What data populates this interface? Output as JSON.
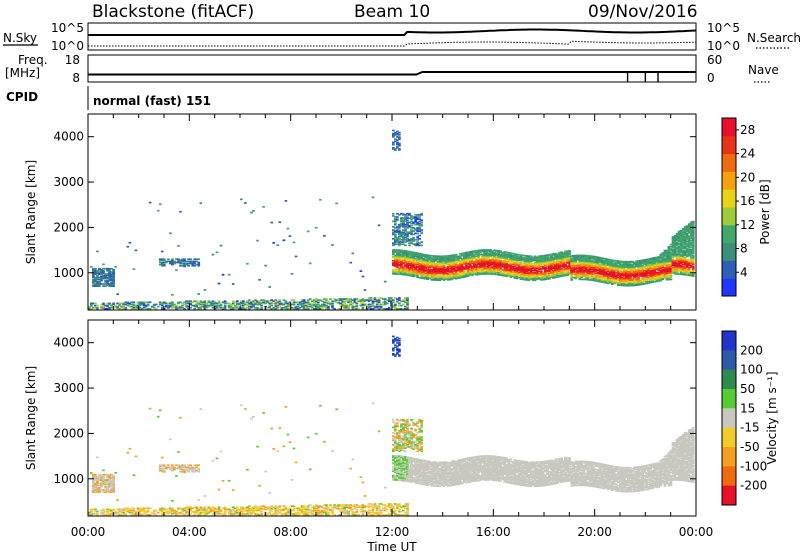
{
  "header": {
    "station": "Blackstone (fitACF)",
    "beam": "Beam 10",
    "date": "09/Nov/2016"
  },
  "summary": {
    "nsky_label": "N.Sky",
    "nsearch_label": "N.Search",
    "freq_label_1": "Freq.",
    "freq_label_2": "[MHz]",
    "nave_label": "Nave",
    "cpid_label": "CPID",
    "cpid_value": "normal (fast) 151",
    "noise_left_ticks": [
      "10^5",
      "10^0"
    ],
    "noise_right_ticks": [
      "10^5",
      "10^0"
    ],
    "freq_ticks": [
      "18",
      "8"
    ],
    "nave_ticks": [
      "60",
      "0"
    ]
  },
  "chart_data": [
    {
      "type": "heatmap",
      "name": "power",
      "xlabel": "Time UT",
      "ylabel": "Slant Range [km]",
      "x_ticks": [
        "00:00",
        "04:00",
        "08:00",
        "12:00",
        "16:00",
        "20:00",
        "00:00"
      ],
      "xlim_hours": [
        0,
        24
      ],
      "y_ticks": [
        1000,
        2000,
        3000,
        4000
      ],
      "ylim": [
        180,
        4500
      ],
      "colorbar": {
        "label": "Power [dB]",
        "ticks": [
          4,
          8,
          12,
          16,
          20,
          24,
          28
        ],
        "range": [
          0,
          30
        ],
        "colors": [
          "#1f36ff",
          "#2e5fb8",
          "#3c8f7a",
          "#3fa86a",
          "#9ccc3a",
          "#e7d319",
          "#f4a10e",
          "#f06a12",
          "#e8321a",
          "#e8102a"
        ]
      },
      "features": [
        {
          "desc": "ground scatter band",
          "t_start": 0,
          "t_end": 12.5,
          "range_low": 180,
          "range_high": 450,
          "power": 8
        },
        {
          "desc": "early patch",
          "t_start": 0.1,
          "t_end": 1.0,
          "range_low": 700,
          "range_high": 1100,
          "power": 6
        },
        {
          "desc": "patch",
          "t_start": 2.8,
          "t_end": 4.4,
          "range_low": 1150,
          "range_high": 1300,
          "power": 6
        },
        {
          "desc": "main echo band",
          "t_start": 12.0,
          "t_end": 23.8,
          "range_low": 900,
          "range_high": 1550,
          "power": 18
        },
        {
          "desc": "core",
          "t_start": 12.2,
          "t_end": 23.2,
          "range_low": 1000,
          "range_high": 1250,
          "power": 28
        }
      ]
    },
    {
      "type": "heatmap",
      "name": "velocity",
      "xlabel": "Time UT",
      "ylabel": "Slant Range [km]",
      "x_ticks": [
        "00:00",
        "04:00",
        "08:00",
        "12:00",
        "16:00",
        "20:00",
        "00:00"
      ],
      "xlim_hours": [
        0,
        24
      ],
      "y_ticks": [
        1000,
        2000,
        3000,
        4000
      ],
      "ylim": [
        180,
        4500
      ],
      "colorbar": {
        "label": "Velocity [m s⁻¹]",
        "ticks": [
          "200",
          "100",
          "50",
          "15",
          "-15",
          "-50",
          "-100",
          "-200"
        ],
        "colors": [
          "#2233cc",
          "#2b5aa8",
          "#2f8a4e",
          "#55cc33",
          "#c8c8c0",
          "#f2cc2a",
          "#f5a020",
          "#f06a12",
          "#e8102a"
        ]
      },
      "features": [
        {
          "desc": "ground scatter band",
          "t_start": 0,
          "t_end": 12.5,
          "range_low": 180,
          "range_high": 450,
          "velocity": -30
        },
        {
          "desc": "main echo band",
          "t_start": 12.0,
          "t_end": 23.8,
          "range_low": 900,
          "range_high": 1700,
          "velocity": 0
        }
      ]
    }
  ]
}
